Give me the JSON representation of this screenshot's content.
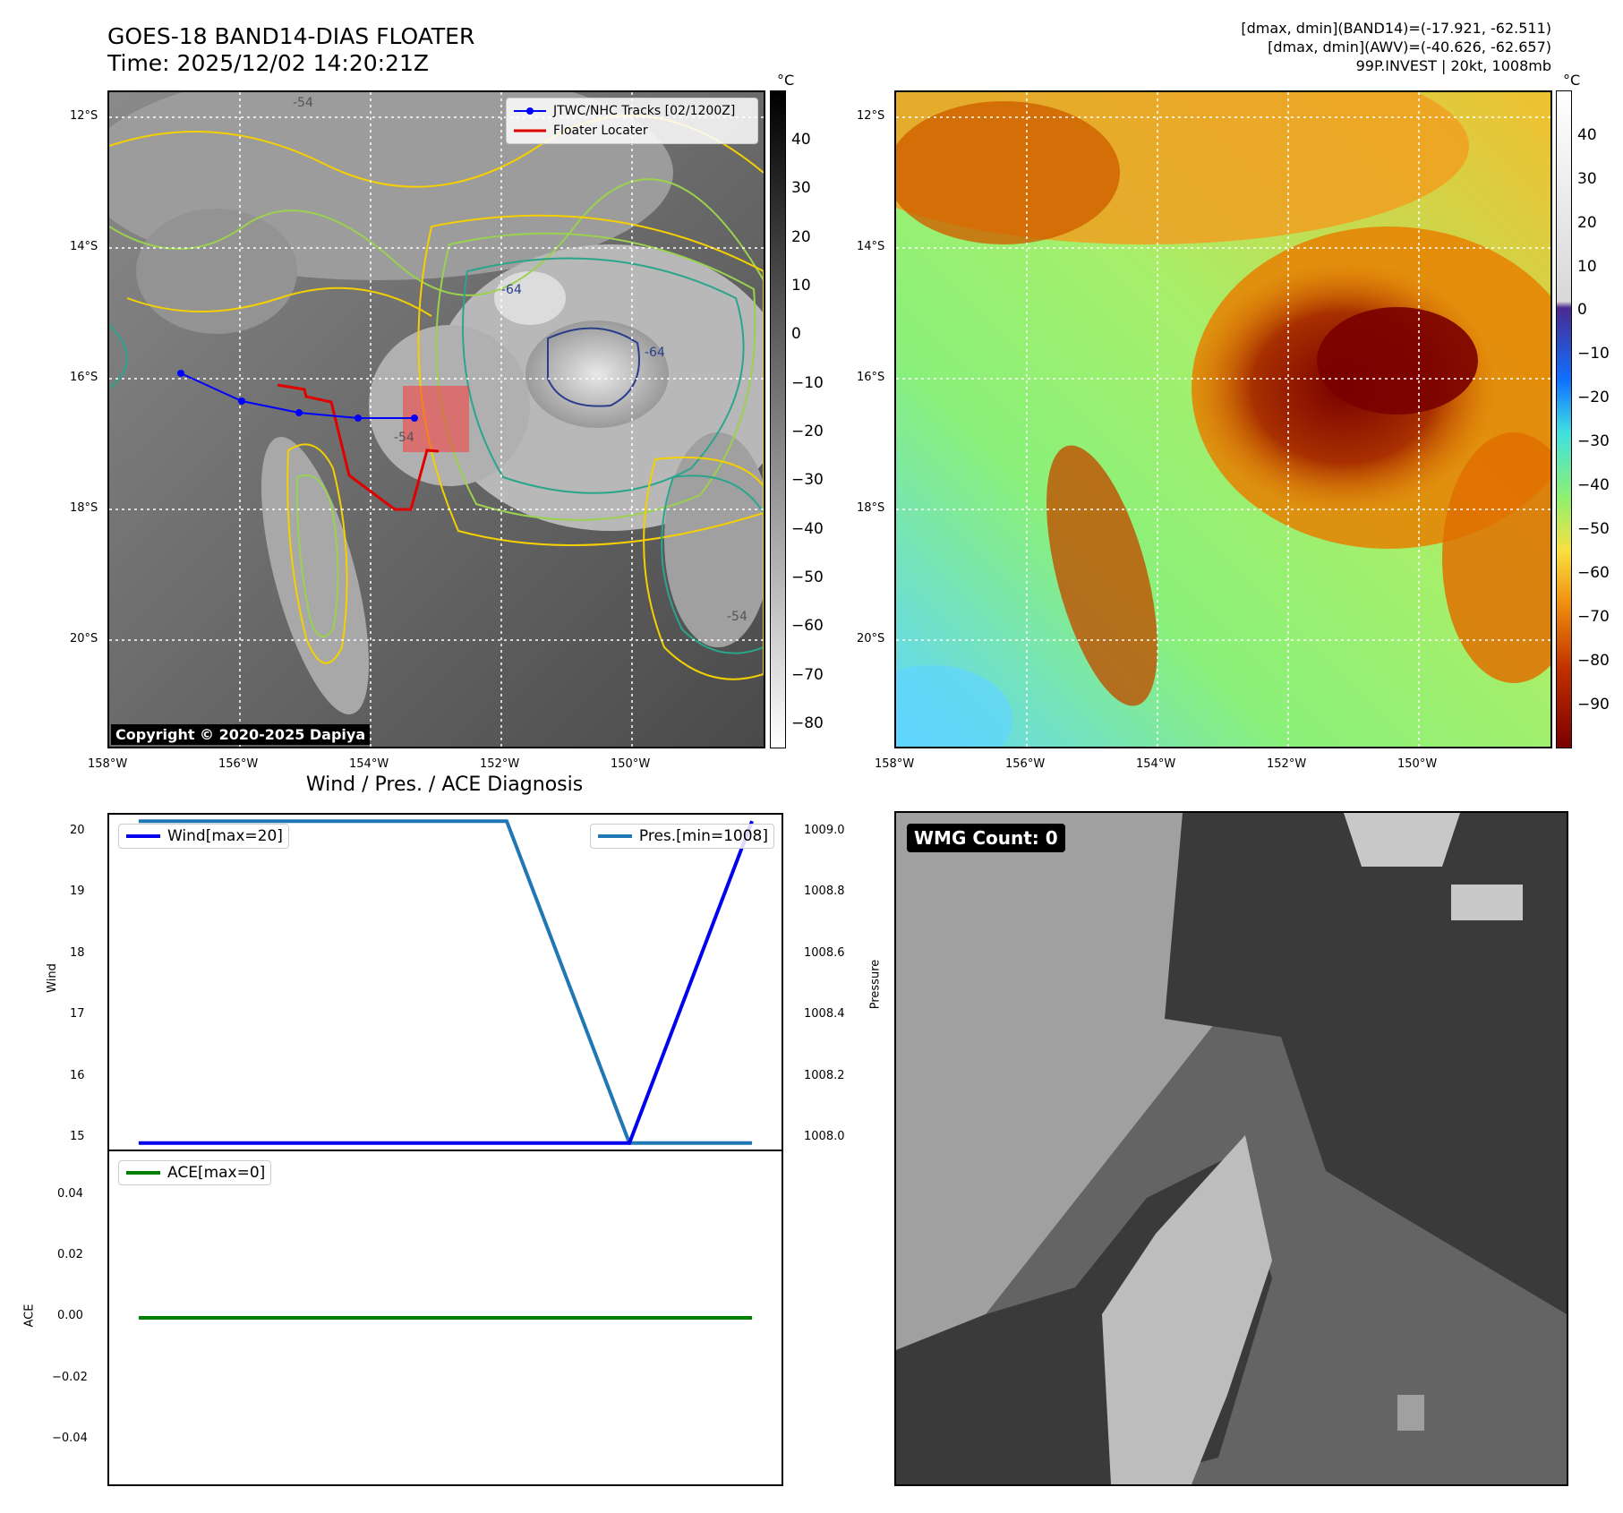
{
  "header": {
    "title_line1": "GOES-18 BAND14-DIAS FLOATER",
    "title_line2": "Time: 2025/12/02 14:20:21Z",
    "info_line1": "[dmax, dmin](BAND14)=(-17.921, -62.511)",
    "info_line2": "[dmax, dmin](AWV)=(-40.626, -62.657)",
    "info_line3": "99P.INVEST | 20kt, 1008mb"
  },
  "map": {
    "lon_ticks": [
      "158°W",
      "156°W",
      "154°W",
      "152°W",
      "150°W"
    ],
    "lat_ticks": [
      "12°S",
      "14°S",
      "16°S",
      "18°S",
      "20°S"
    ],
    "contour_labels": [
      "-54",
      "-64",
      "-54",
      "-54",
      "-64"
    ],
    "legend": {
      "track_label": "JTWC/NHC Tracks [02/1200Z]",
      "floater_label": "Floater Locater",
      "track_color": "#0000ff",
      "floater_color": "#e00000"
    },
    "copyright": "Copyright © 2020-2025 Dapiya",
    "colorbar_unit": "°C",
    "colorbar_ticks": [
      "40",
      "30",
      "20",
      "10",
      "0",
      "−10",
      "−20",
      "−30",
      "−40",
      "−50",
      "−60",
      "−70",
      "−80"
    ]
  },
  "awv_map": {
    "lon_ticks": [
      "158°W",
      "156°W",
      "154°W",
      "152°W",
      "150°W"
    ],
    "lat_ticks": [
      "12°S",
      "14°S",
      "16°S",
      "18°S",
      "20°S"
    ],
    "colorbar_unit": "°C",
    "colorbar_ticks_upper": [
      "40",
      "30",
      "20",
      "10",
      "0"
    ],
    "colorbar_ticks_lower": [
      "−10",
      "−20",
      "−30",
      "−40",
      "−50",
      "−60",
      "−70",
      "−80",
      "−90"
    ]
  },
  "diagnosis": {
    "title": "Wind / Pres. / ACE Diagnosis",
    "wind_ylabel": "Wind",
    "pressure_ylabel": "Pressure",
    "ace_ylabel": "ACE",
    "wind_ticks": [
      "20",
      "19",
      "18",
      "17",
      "16",
      "15"
    ],
    "pressure_ticks": [
      "1009.0",
      "1008.8",
      "1008.6",
      "1008.4",
      "1008.2",
      "1008.0"
    ],
    "ace_ticks": [
      "0.04",
      "0.02",
      "0.00",
      "−0.02",
      "−0.04"
    ],
    "wind_legend": "Wind[max=20]",
    "pressure_legend": "Pres.[min=1008]",
    "ace_legend": "ACE[max=0]",
    "wind_color": "#0000ee",
    "pressure_color": "#1f77b4",
    "ace_color": "#008000"
  },
  "wmg": {
    "label": "WMG Count: 0"
  },
  "chart_data": [
    {
      "type": "line",
      "title": "",
      "xlabel": "",
      "ylabel": "Wind",
      "x": [
        0,
        1,
        2,
        3,
        4,
        5
      ],
      "series": [
        {
          "name": "Wind[max=20]",
          "axis": "left",
          "values": [
            15,
            15,
            15,
            15,
            15,
            20
          ]
        },
        {
          "name": "Pres.[min=1008]",
          "axis": "right",
          "values": [
            1009,
            1009,
            1009,
            1009,
            1008,
            1008
          ]
        }
      ],
      "ylim": [
        14.9,
        20.1
      ],
      "y2lim": [
        1007.98,
        1009.02
      ],
      "y2label": "Pressure"
    },
    {
      "type": "line",
      "title": "",
      "xlabel": "",
      "ylabel": "ACE",
      "x": [
        0,
        1,
        2,
        3,
        4,
        5
      ],
      "series": [
        {
          "name": "ACE[max=0]",
          "values": [
            0,
            0,
            0,
            0,
            0,
            0
          ]
        }
      ],
      "ylim": [
        -0.055,
        0.055
      ]
    }
  ]
}
